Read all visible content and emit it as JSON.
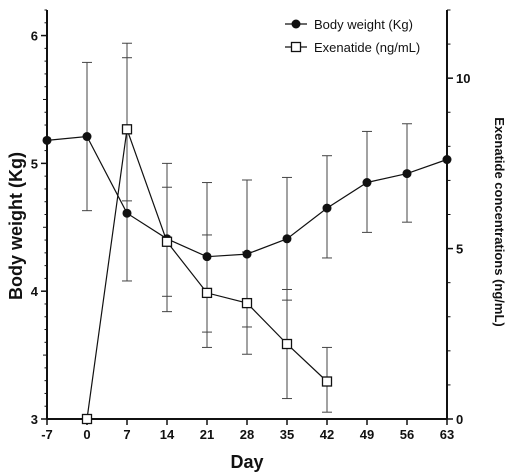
{
  "chart_data": {
    "type": "line",
    "x": [
      -7,
      0,
      7,
      14,
      21,
      28,
      35,
      42,
      49,
      56,
      63
    ],
    "xlabel": "Day",
    "xlim": [
      -7,
      63
    ],
    "xticks": [
      "-7",
      "0",
      "7",
      "14",
      "21",
      "28",
      "35",
      "42",
      "49",
      "56",
      "63"
    ],
    "ylabel": "Body weight (Kg)",
    "ylim": [
      3,
      6.2
    ],
    "yticks": [
      "3",
      "4",
      "5",
      "6"
    ],
    "y2label": "Exenatide concentrations (ng/mL)",
    "y2lim": [
      0,
      12
    ],
    "y2ticks": [
      "0",
      "5",
      "10"
    ],
    "legend_position": "top-right",
    "series": [
      {
        "name": "Body weight (Kg)",
        "axis": "left",
        "marker": "filled-circle",
        "x": [
          -7,
          0,
          7,
          14,
          21,
          28,
          35,
          42,
          49,
          56,
          63
        ],
        "values": [
          5.18,
          5.21,
          4.61,
          4.41,
          4.27,
          4.29,
          4.41,
          4.65,
          4.85,
          4.92,
          5.03
        ],
        "error_upper": [
          5.18,
          5.79,
          5.94,
          5.0,
          4.85,
          4.87,
          4.89,
          5.06,
          5.25,
          5.31,
          5.03
        ],
        "error_lower": [
          5.18,
          4.63,
          4.08,
          3.84,
          3.68,
          3.72,
          3.93,
          4.26,
          4.46,
          4.54,
          5.03
        ]
      },
      {
        "name": "Exenatide (ng/mL)",
        "axis": "right",
        "marker": "open-square",
        "x": [
          0,
          7,
          14,
          21,
          28,
          35,
          42
        ],
        "values": [
          0.0,
          8.5,
          5.2,
          3.7,
          3.4,
          2.2,
          1.1
        ],
        "error_upper": [
          0.0,
          10.6,
          6.8,
          5.4,
          4.9,
          3.8,
          2.1
        ],
        "error_lower": [
          0.0,
          6.4,
          3.6,
          2.1,
          1.9,
          0.6,
          0.2
        ]
      }
    ]
  }
}
